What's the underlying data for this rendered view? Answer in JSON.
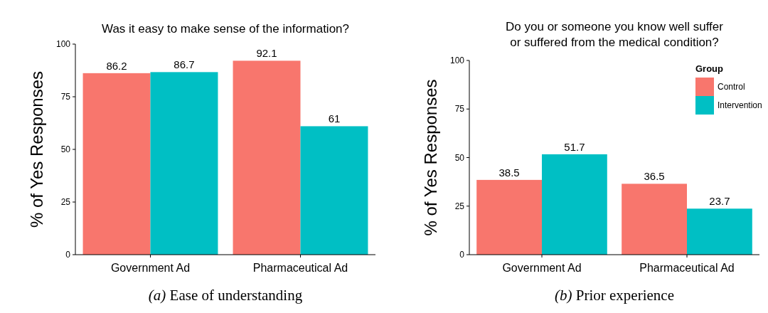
{
  "chart_data": [
    {
      "type": "bar",
      "title": "Was it easy to make sense of the information?",
      "ylabel": "% of Yes Responses",
      "categories": [
        "Government Ad",
        "Pharmaceutical Ad"
      ],
      "series": [
        {
          "color": "#f8766d",
          "values": [
            86.2,
            92.1
          ]
        },
        {
          "color": "#00bfc4",
          "values": [
            86.7,
            61
          ]
        }
      ],
      "ylim": [
        0,
        100
      ],
      "yticks": [
        0,
        25,
        50,
        75,
        100
      ],
      "data_labels": true,
      "grid": false,
      "legend": false,
      "annotations": [
        "(a) Ease of understanding"
      ]
    },
    {
      "type": "bar",
      "title": "Do you or someone you know well suffer\nor suffered from the medical condition?",
      "ylabel": "% of Yes Responses",
      "legend_title": "Group",
      "categories": [
        "Government Ad",
        "Pharmaceutical Ad"
      ],
      "series": [
        {
          "name": "Control",
          "color": "#f8766d",
          "values": [
            38.5,
            36.5
          ]
        },
        {
          "name": "Intervention",
          "color": "#00bfc4",
          "values": [
            51.7,
            23.7
          ]
        }
      ],
      "ylim": [
        0,
        100
      ],
      "yticks": [
        0,
        25,
        50,
        75,
        100
      ],
      "data_labels": true,
      "grid": false,
      "legend": "top right",
      "annotations": [
        "(b) Prior experience"
      ]
    }
  ]
}
